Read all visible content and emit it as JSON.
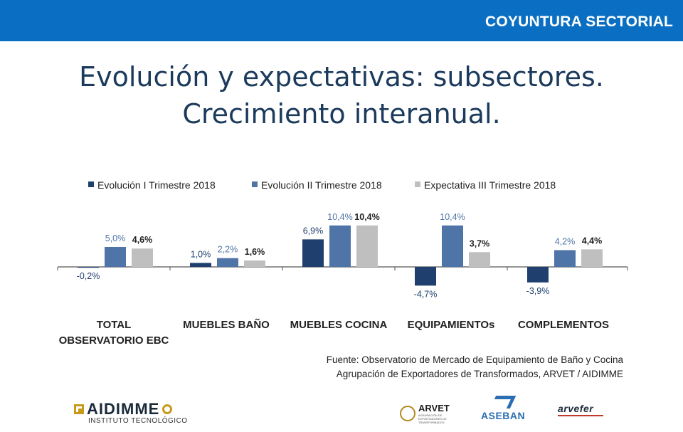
{
  "header": {
    "section_label": "COYUNTURA SECTORIAL"
  },
  "title": {
    "line1": "Evolución y expectativas: subsectores.",
    "line2": "Crecimiento interanual."
  },
  "colors": {
    "header_bg": "#0a6fc2",
    "series1": "#1f3f6e",
    "series2": "#4f74a8",
    "series3": "#bfbfbf"
  },
  "chart_data": {
    "type": "bar",
    "categories": [
      "TOTAL\nOBSERVATORIO EBC",
      "MUEBLES BAÑO",
      "MUEBLES COCINA",
      "EQUIPAMIENTOs",
      "COMPLEMENTOS"
    ],
    "series": [
      {
        "name": "Evolución I Trimestre 2018",
        "values": [
          -0.2,
          1.0,
          6.9,
          -4.7,
          -3.9
        ],
        "labels": [
          "-0,2%",
          "1,0%",
          "6,9%",
          "-4,7%",
          "-3,9%"
        ]
      },
      {
        "name": "Evolución II Trimestre 2018",
        "values": [
          5.0,
          2.2,
          10.4,
          10.4,
          4.2
        ],
        "labels": [
          "5,0%",
          "2,2%",
          "10,4%",
          "10,4%",
          "4,2%"
        ]
      },
      {
        "name": "Expectativa III Trimestre 2018",
        "values": [
          4.6,
          1.6,
          10.4,
          3.7,
          4.4
        ],
        "labels": [
          "4,6%",
          "1,6%",
          "10,4%",
          "3,7%",
          "4,4%"
        ]
      }
    ],
    "legend_position": "top",
    "grid": false
  },
  "source": {
    "line1": "Fuente: Observatorio de Mercado de Equipamiento de Baño y Cocina",
    "line2": "Agrupación de Exportadores de Transformados, ARVET / AIDIMME"
  },
  "logos": {
    "aidimme": {
      "name": "AIDIMME",
      "subtitle": "INSTITUTO TECNOLÓGICO"
    },
    "arvet": {
      "name": "ARVET",
      "subtitle": "AGRUPACIÓN DE EXPORTADORES DE TRANSFORMADOS"
    },
    "aseban": {
      "name": "ASEBAN"
    },
    "arvefer": {
      "name": "arvefer"
    }
  }
}
